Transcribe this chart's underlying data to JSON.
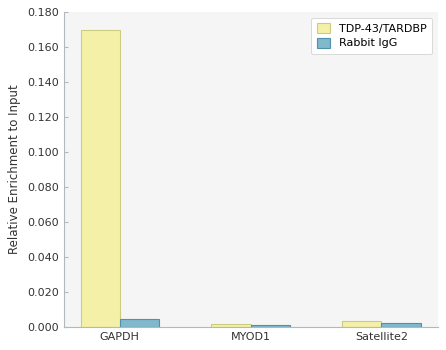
{
  "categories": [
    "GAPDH",
    "MYOD1",
    "Satellite2"
  ],
  "tdp43_values": [
    0.17,
    0.0015,
    0.0032
  ],
  "igg_values": [
    0.0042,
    0.0013,
    0.002
  ],
  "tdp43_color": "#F5F0A8",
  "tdp43_edge_color": "#CCCC80",
  "igg_color": "#80B8CC",
  "igg_edge_color": "#5090A8",
  "ylabel": "Relative Enrichment to Input",
  "ylim": [
    0,
    0.18
  ],
  "yticks": [
    0.0,
    0.02,
    0.04,
    0.06,
    0.08,
    0.1,
    0.12,
    0.14,
    0.16,
    0.18
  ],
  "legend_tdp43": "TDP-43/TARDBP",
  "legend_igg": "Rabbit IgG",
  "bar_width": 0.3,
  "background_color": "#ffffff",
  "plot_bg_color": "#f0f0f0",
  "spine_color": "#b0b8c0",
  "font_size": 8.5,
  "tick_font_size": 8,
  "legend_font_size": 8
}
